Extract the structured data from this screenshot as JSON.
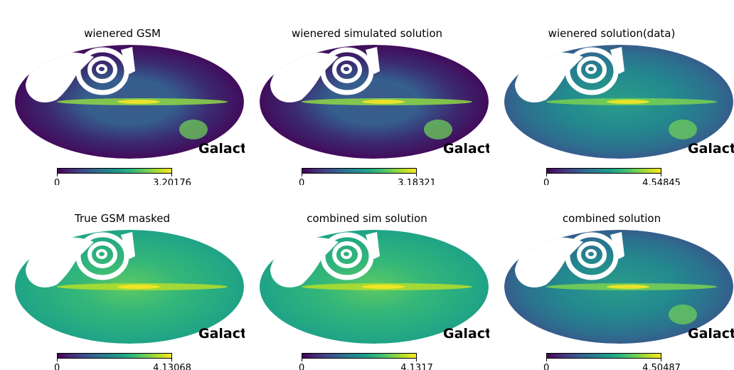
{
  "chart_data": [
    {
      "type": "heatmap",
      "title": "wienered GSM",
      "projection": "mollweide",
      "coord_label": "Galact",
      "colormap": "viridis",
      "clim": [
        0,
        3.20176
      ],
      "colorbar": {
        "min_label": "0",
        "max_label": "3.20176"
      },
      "appearance": "low"
    },
    {
      "type": "heatmap",
      "title": "wienered simulated solution",
      "projection": "mollweide",
      "coord_label": "Galact",
      "colormap": "viridis",
      "clim": [
        0,
        3.18321
      ],
      "colorbar": {
        "min_label": "0",
        "max_label": "3.18321"
      },
      "appearance": "low"
    },
    {
      "type": "heatmap",
      "title": "wienered solution(data)",
      "projection": "mollweide",
      "coord_label": "Galact",
      "colormap": "viridis",
      "clim": [
        0,
        4.54845
      ],
      "colorbar": {
        "min_label": "0",
        "max_label": "4.54845"
      },
      "appearance": "mid"
    },
    {
      "type": "heatmap",
      "title": "True GSM masked",
      "projection": "mollweide",
      "coord_label": "Galact",
      "colormap": "viridis",
      "clim": [
        0,
        4.13068
      ],
      "colorbar": {
        "min_label": "0",
        "max_label": "4.13068"
      },
      "appearance": "smooth"
    },
    {
      "type": "heatmap",
      "title": "combined sim solution",
      "projection": "mollweide",
      "coord_label": "Galact",
      "colormap": "viridis",
      "clim": [
        0,
        4.1317
      ],
      "colorbar": {
        "min_label": "0",
        "max_label": "4.1317"
      },
      "appearance": "smooth"
    },
    {
      "type": "heatmap",
      "title": "combined solution",
      "projection": "mollweide",
      "coord_label": "Galact",
      "colormap": "viridis",
      "clim": [
        0,
        4.50487
      ],
      "colorbar": {
        "min_label": "0",
        "max_label": "4.50487"
      },
      "appearance": "mid"
    }
  ],
  "colors": {
    "viridis_low": "#440154",
    "viridis_mid": "#21918c",
    "viridis_high": "#fde725",
    "mask": "#ffffff"
  }
}
